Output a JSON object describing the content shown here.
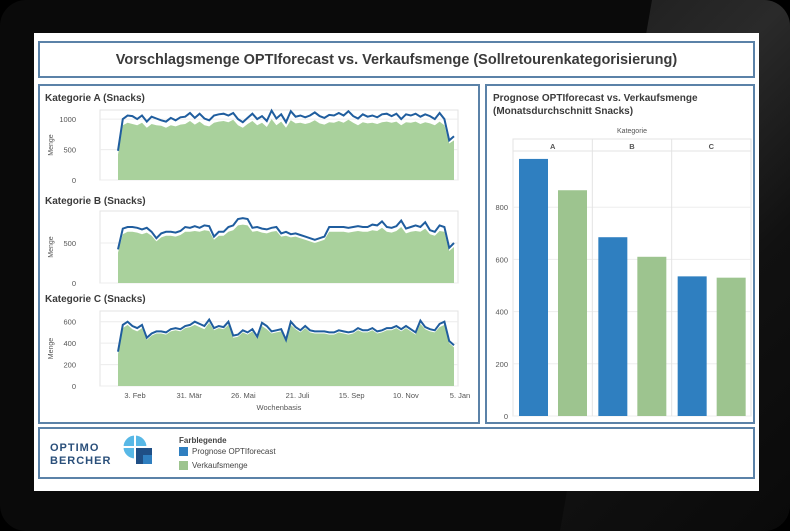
{
  "dashboard": {
    "title": "Vorschlagsmenge OPTIforecast vs. Verkaufsmenge (Sollretourenkategorisierung)"
  },
  "left_panel": {
    "x_axis_label": "Wochenbasis",
    "x_ticks": [
      "3. Feb",
      "31. Mär",
      "26. Mai",
      "21. Juli",
      "15. Sep",
      "10. Nov",
      "5. Jan"
    ]
  },
  "right_panel": {
    "title_line1": "Prognose OPTIforecast vs. Verkaufsmenge",
    "title_line2": "(Monatsdurchschnitt Snacks)",
    "header": "Kategorie"
  },
  "legend": {
    "logo_line1": "OPTIMO",
    "logo_line2": "BERCHER",
    "title": "Farblegende",
    "items": [
      {
        "label": "Prognose OPTIforecast",
        "color": "#2f7fc0"
      },
      {
        "label": "Verkaufsmenge",
        "color": "#9dc48f"
      }
    ]
  },
  "colors": {
    "border": "#5b82a8",
    "forecast": "#2f7fc0",
    "forecast_line": "#1f5d9e",
    "sales": "#9dc48f",
    "sales_area": "#a9d19c"
  },
  "chart_data": [
    {
      "type": "line",
      "title": "Kategorie A (Snacks)",
      "ylabel": "Menge",
      "yticks": [
        0,
        500,
        1000
      ],
      "ylim": [
        0,
        1150
      ],
      "series": [
        {
          "name": "Prognose OPTIforecast",
          "values": [
            480,
            1000,
            1060,
            1050,
            1000,
            1060,
            960,
            1040,
            1010,
            980,
            960,
            1020,
            980,
            1030,
            1040,
            1100,
            1020,
            1090,
            1010,
            980,
            1060,
            1080,
            1090,
            1060,
            1100,
            1000,
            950,
            1020,
            1090,
            1000,
            1050,
            970,
            1140,
            1010,
            1080,
            950,
            1130,
            1040,
            1060,
            1030,
            1060,
            1110,
            1050,
            1020,
            1070,
            1060,
            1100,
            1060,
            1130,
            1050,
            1010,
            1080,
            1040,
            1060,
            1030,
            1080,
            1090,
            1050,
            1090,
            1000,
            1080,
            1060,
            1090,
            1040,
            1080,
            1050,
            1000,
            1100,
            1000,
            650,
            720
          ]
        },
        {
          "name": "Verkaufsmenge",
          "values": [
            420,
            900,
            940,
            920,
            900,
            940,
            860,
            920,
            900,
            890,
            860,
            900,
            880,
            910,
            920,
            970,
            910,
            960,
            900,
            880,
            940,
            960,
            970,
            950,
            990,
            900,
            860,
            920,
            970,
            900,
            940,
            870,
            1000,
            900,
            960,
            860,
            980,
            930,
            940,
            920,
            940,
            980,
            930,
            910,
            950,
            940,
            970,
            940,
            990,
            940,
            900,
            950,
            930,
            940,
            920,
            950,
            960,
            940,
            960,
            900,
            950,
            940,
            960,
            920,
            950,
            930,
            900,
            960,
            900,
            600,
            650
          ]
        }
      ]
    },
    {
      "type": "line",
      "title": "Kategorie B (Snacks)",
      "ylabel": "Menge",
      "yticks": [
        0,
        500
      ],
      "ylim": [
        0,
        900
      ],
      "series": [
        {
          "name": "Prognose OPTIforecast",
          "values": [
            420,
            680,
            700,
            700,
            690,
            670,
            690,
            640,
            560,
            620,
            640,
            640,
            630,
            650,
            700,
            690,
            710,
            690,
            720,
            710,
            580,
            640,
            640,
            700,
            720,
            800,
            810,
            800,
            690,
            700,
            680,
            670,
            690,
            700,
            620,
            640,
            610,
            620,
            600,
            580,
            560,
            540,
            560,
            580,
            700,
            700,
            700,
            700,
            690,
            700,
            710,
            700,
            700,
            730,
            720,
            770,
            700,
            690,
            710,
            780,
            680,
            700,
            720,
            700,
            760,
            660,
            640,
            720,
            700,
            440,
            500
          ]
        },
        {
          "name": "Verkaufsmenge",
          "values": [
            380,
            610,
            640,
            640,
            630,
            610,
            630,
            590,
            520,
            570,
            590,
            590,
            580,
            600,
            640,
            640,
            650,
            640,
            660,
            650,
            540,
            590,
            590,
            640,
            660,
            720,
            730,
            720,
            640,
            650,
            630,
            620,
            640,
            650,
            580,
            590,
            570,
            580,
            560,
            540,
            520,
            500,
            520,
            540,
            640,
            640,
            640,
            640,
            630,
            640,
            650,
            640,
            640,
            660,
            650,
            690,
            640,
            630,
            650,
            700,
            620,
            640,
            650,
            640,
            680,
            610,
            590,
            650,
            640,
            400,
            450
          ]
        }
      ]
    },
    {
      "type": "line",
      "title": "Kategorie C (Snacks)",
      "ylabel": "Menge",
      "yticks": [
        0,
        200,
        400,
        600
      ],
      "ylim": [
        0,
        700
      ],
      "series": [
        {
          "name": "Prognose OPTIforecast",
          "values": [
            320,
            570,
            600,
            560,
            540,
            570,
            450,
            490,
            510,
            510,
            500,
            530,
            540,
            530,
            560,
            570,
            600,
            580,
            560,
            620,
            540,
            560,
            550,
            600,
            470,
            480,
            520,
            500,
            530,
            460,
            590,
            560,
            510,
            520,
            530,
            430,
            600,
            550,
            520,
            560,
            520,
            510,
            510,
            510,
            500,
            500,
            520,
            510,
            500,
            510,
            540,
            520,
            520,
            540,
            510,
            520,
            540,
            540,
            560,
            530,
            560,
            530,
            500,
            610,
            550,
            530,
            520,
            580,
            600,
            420,
            380
          ]
        },
        {
          "name": "Verkaufsmenge",
          "values": [
            300,
            540,
            570,
            530,
            510,
            540,
            430,
            470,
            490,
            490,
            480,
            510,
            520,
            510,
            540,
            550,
            570,
            550,
            530,
            590,
            520,
            540,
            530,
            570,
            450,
            460,
            500,
            480,
            510,
            440,
            560,
            530,
            490,
            500,
            510,
            410,
            570,
            530,
            500,
            540,
            500,
            490,
            490,
            490,
            480,
            480,
            500,
            490,
            480,
            490,
            520,
            500,
            500,
            520,
            490,
            500,
            520,
            520,
            540,
            510,
            540,
            510,
            480,
            580,
            530,
            510,
            500,
            550,
            570,
            400,
            360
          ]
        }
      ]
    },
    {
      "type": "bar",
      "title": "Prognose OPTIforecast vs. Verkaufsmenge (Monatsdurchschnitt Snacks)",
      "xlabel": "Kategorie",
      "categories": [
        "A",
        "B",
        "C"
      ],
      "yticks": [
        0,
        200,
        400,
        600,
        800
      ],
      "ylim": [
        0,
        1000
      ],
      "series": [
        {
          "name": "Prognose OPTIforecast",
          "values": [
            985,
            685,
            535
          ]
        },
        {
          "name": "Verkaufsmenge",
          "values": [
            865,
            610,
            530
          ]
        }
      ]
    }
  ]
}
